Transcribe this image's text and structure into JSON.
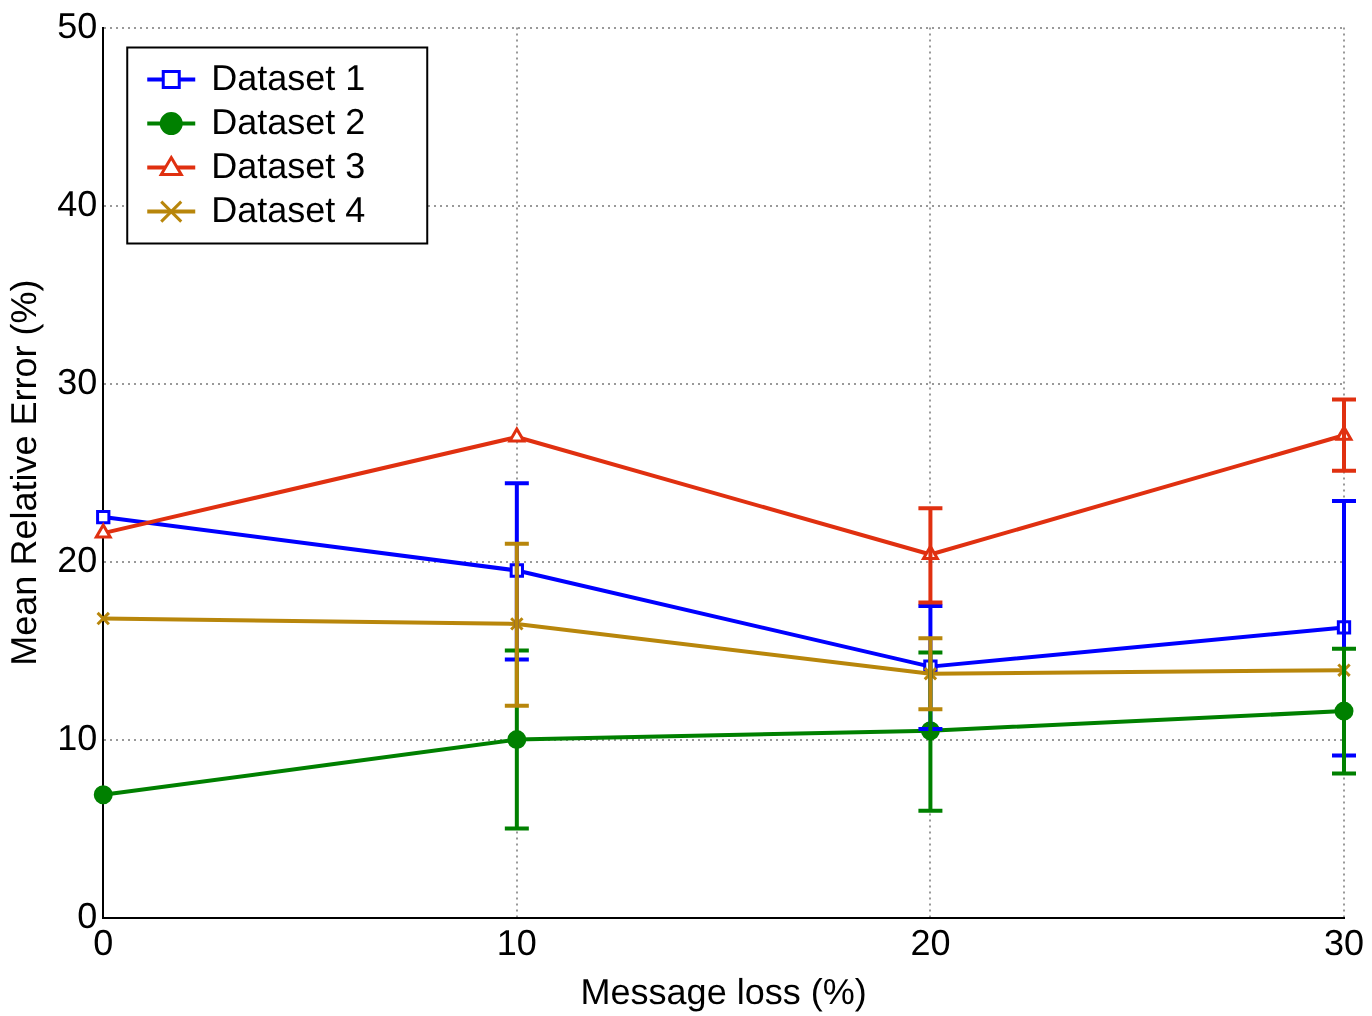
{
  "chart_data": {
    "type": "line",
    "xlabel": "Message loss (%)",
    "ylabel": "Mean Relative Error (%)",
    "x": [
      0,
      10,
      20,
      30
    ],
    "xlim": [
      0,
      30
    ],
    "xticks": [
      0,
      10,
      20,
      30
    ],
    "ylim": [
      0,
      50
    ],
    "yticks": [
      0,
      10,
      20,
      30,
      40,
      50
    ],
    "grid": true,
    "legend": "top left",
    "line_style": "solid",
    "series": [
      {
        "name": "Dataset 1",
        "color": "#0000ff",
        "marker": "square",
        "values": [
          22.5,
          19.5,
          14.1,
          16.3
        ],
        "errors": [
          null,
          [
            14.5,
            24.4
          ],
          [
            10.6,
            17.5
          ],
          [
            9.1,
            23.4
          ]
        ]
      },
      {
        "name": "Dataset 2",
        "color": "#008000",
        "marker": "circle",
        "values": [
          6.9,
          10.0,
          10.5,
          11.6
        ],
        "errors": [
          null,
          [
            5.0,
            15.0
          ],
          [
            6.0,
            14.9
          ],
          [
            8.1,
            15.1
          ]
        ]
      },
      {
        "name": "Dataset 3",
        "color": "#e03010",
        "marker": "triangle",
        "values": [
          21.6,
          27.0,
          20.4,
          27.1
        ],
        "errors": [
          null,
          null,
          [
            17.7,
            23.0
          ],
          [
            25.1,
            29.1
          ]
        ]
      },
      {
        "name": "Dataset 4",
        "color": "#b8860b",
        "marker": "cross",
        "values": [
          16.8,
          16.5,
          13.7,
          13.9
        ],
        "errors": [
          null,
          [
            11.9,
            21.0
          ],
          [
            11.7,
            15.7
          ],
          null
        ]
      }
    ]
  }
}
